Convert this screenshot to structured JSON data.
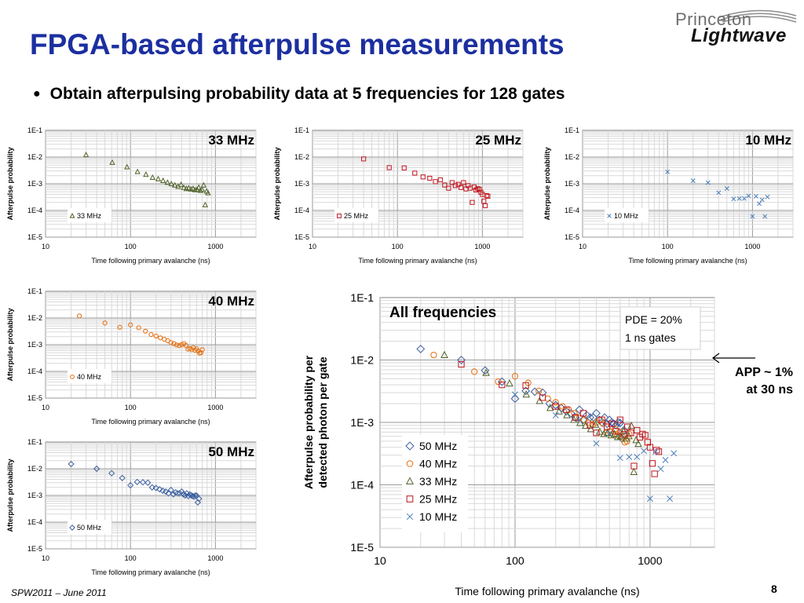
{
  "slide": {
    "title": "FPGA-based afterpulse measurements",
    "bullet": "Obtain afterpulsing probability data at 5 frequencies for 128 gates",
    "logo_top": "Princeton",
    "logo_bottom": "Lightwave",
    "app_note_line1": "APP ~ 1%",
    "app_note_line2": "at 30 ns",
    "footer": "SPW2011 – June 2011",
    "page_number": "8"
  },
  "chart_data": [
    {
      "id": "f33",
      "type": "scatter",
      "scale": "log-log",
      "title": "33 MHz",
      "xlabel": "Time following  primary avalanche (ns)",
      "ylabel": "Afterpulse probability",
      "xlim": [
        10,
        3000
      ],
      "ylim": [
        1e-05,
        0.1
      ],
      "xticks": [
        "10",
        "100",
        "1000"
      ],
      "yticks": [
        "1E-5",
        "1E-4",
        "1E-3",
        "1E-2",
        "1E-1"
      ],
      "grid": true,
      "legend_position": "bottom-left",
      "series": [
        {
          "name": "33 MHz",
          "marker": "triangle",
          "color": "#4f6228",
          "x": [
            30,
            61,
            91,
            121,
            152,
            182,
            212,
            242,
            273,
            303,
            333,
            364,
            394,
            424,
            455,
            485,
            515,
            545,
            576,
            606,
            636,
            667,
            697,
            727,
            758,
            788,
            818
          ],
          "y": [
            0.012,
            0.0062,
            0.0042,
            0.0028,
            0.0022,
            0.0017,
            0.0015,
            0.0013,
            0.0011,
            0.00098,
            0.00088,
            0.00078,
            0.00092,
            0.00071,
            0.00065,
            0.00068,
            0.00062,
            0.00065,
            0.00058,
            0.0006,
            0.00072,
            0.00055,
            0.0006,
            0.00088,
            0.00016,
            0.00052,
            0.00045
          ]
        }
      ]
    },
    {
      "id": "f25",
      "type": "scatter",
      "scale": "log-log",
      "title": "25 MHz",
      "xlabel": "Time following  primary avalanche (ns)",
      "ylabel": "Afterpulse probability",
      "xlim": [
        10,
        3000
      ],
      "ylim": [
        1e-05,
        0.1
      ],
      "xticks": [
        "10",
        "100",
        "1000"
      ],
      "yticks": [
        "1E-5",
        "1E-4",
        "1E-3",
        "1E-2",
        "1E-1"
      ],
      "grid": true,
      "legend_position": "bottom-left",
      "series": [
        {
          "name": "25 MHz",
          "marker": "square",
          "color": "#c0161e",
          "x": [
            40,
            80,
            120,
            160,
            200,
            240,
            280,
            320,
            360,
            400,
            440,
            480,
            520,
            560,
            600,
            640,
            680,
            720,
            760,
            800,
            840,
            880,
            920,
            960,
            1000,
            1040,
            1080,
            1120,
            1160
          ],
          "y": [
            0.0085,
            0.004,
            0.0039,
            0.0025,
            0.0018,
            0.0016,
            0.0012,
            0.0014,
            0.0009,
            0.00068,
            0.0011,
            0.00085,
            0.00095,
            0.00072,
            0.0011,
            0.00064,
            0.00085,
            0.00068,
            0.0002,
            0.00075,
            0.00058,
            0.00065,
            0.00062,
            0.00048,
            0.0004,
            0.00022,
            0.00015,
            0.00036,
            0.00034
          ]
        }
      ]
    },
    {
      "id": "f10",
      "type": "scatter",
      "scale": "log-log",
      "title": "10 MHz",
      "xlabel": "Time following  primary avalanche (ns)",
      "ylabel": "Afterpulse probability",
      "xlim": [
        10,
        3000
      ],
      "ylim": [
        1e-05,
        0.1
      ],
      "xticks": [
        "10",
        "100",
        "1000"
      ],
      "yticks": [
        "1E-5",
        "1E-4",
        "1E-3",
        "1E-2",
        "1E-1"
      ],
      "grid": true,
      "legend_position": "bottom-left",
      "series": [
        {
          "name": "10 MHz",
          "marker": "x",
          "color": "#4a7ebb",
          "x": [
            100,
            200,
            300,
            400,
            500,
            600,
            700,
            800,
            900,
            1000,
            1100,
            1200,
            1300,
            1400,
            1500
          ],
          "y": [
            0.0028,
            0.0013,
            0.0011,
            0.00046,
            0.00066,
            0.00027,
            0.00028,
            0.00028,
            0.00035,
            6e-05,
            0.00034,
            0.00018,
            0.00025,
            6e-05,
            0.00032
          ]
        }
      ]
    },
    {
      "id": "f40",
      "type": "scatter",
      "scale": "log-log",
      "title": "40 MHz",
      "xlabel": "Time following  primary avalanche (ns)",
      "ylabel": "Afterpulse probability",
      "xlim": [
        10,
        3000
      ],
      "ylim": [
        1e-05,
        0.1
      ],
      "xticks": [
        "10",
        "100",
        "1000"
      ],
      "yticks": [
        "1E-5",
        "1E-4",
        "1E-3",
        "1E-2",
        "1E-1"
      ],
      "grid": true,
      "legend_position": "bottom-left",
      "series": [
        {
          "name": "40 MHz",
          "marker": "circle",
          "color": "#e46c0a",
          "x": [
            25,
            50,
            75,
            100,
            125,
            150,
            175,
            200,
            225,
            250,
            275,
            300,
            325,
            350,
            375,
            400,
            425,
            450,
            475,
            500,
            525,
            550,
            575,
            600,
            625,
            650,
            675,
            700
          ],
          "y": [
            0.012,
            0.0065,
            0.0045,
            0.0055,
            0.0043,
            0.0032,
            0.0024,
            0.0021,
            0.0018,
            0.0016,
            0.0014,
            0.0012,
            0.0011,
            0.00098,
            0.00092,
            0.001,
            0.0011,
            0.00095,
            0.00068,
            0.00072,
            0.00065,
            0.00078,
            0.00062,
            0.0007,
            0.00058,
            0.00048,
            0.0005,
            0.00065
          ]
        }
      ]
    },
    {
      "id": "f50",
      "type": "scatter",
      "scale": "log-log",
      "title": "50 MHz",
      "xlabel": "Time following  primary avalanche (ns)",
      "ylabel": "Afterpulse probability",
      "xlim": [
        10,
        3000
      ],
      "ylim": [
        1e-05,
        0.1
      ],
      "xticks": [
        "10",
        "100",
        "1000"
      ],
      "yticks": [
        "1E-5",
        "1E-4",
        "1E-3",
        "1E-2",
        "1E-1"
      ],
      "grid": true,
      "legend_position": "bottom-left",
      "series": [
        {
          "name": "50 MHz",
          "marker": "diamond",
          "color": "#3a5f9e",
          "x": [
            20,
            40,
            60,
            80,
            100,
            120,
            140,
            160,
            180,
            200,
            220,
            240,
            260,
            280,
            300,
            320,
            340,
            360,
            380,
            400,
            420,
            440,
            460,
            480,
            500,
            520,
            540,
            560,
            580,
            600,
            620,
            640
          ],
          "y": [
            0.015,
            0.01,
            0.0068,
            0.0045,
            0.0024,
            0.0032,
            0.0031,
            0.003,
            0.002,
            0.0019,
            0.0017,
            0.0015,
            0.0014,
            0.0012,
            0.0016,
            0.0011,
            0.0013,
            0.0012,
            0.0012,
            0.0014,
            0.0011,
            0.001,
            0.0012,
            0.00095,
            0.0011,
            0.001,
            0.00095,
            0.0009,
            0.001,
            0.00098,
            0.00055,
            0.00075
          ]
        }
      ]
    },
    {
      "id": "all",
      "type": "scatter",
      "scale": "log-log",
      "title": "All frequencies",
      "xlabel": "Time following  primary avalanche (ns)",
      "ylabel": "Afterpulse probability per detected photon  per gate",
      "xlim": [
        10,
        3000
      ],
      "ylim": [
        1e-05,
        0.1
      ],
      "xticks": [
        "10",
        "100",
        "1000"
      ],
      "yticks": [
        "1E-5",
        "1E-4",
        "1E-3",
        "1E-2",
        "1E-1"
      ],
      "grid": true,
      "legend_position": "bottom-left",
      "annotation_line1": "PDE = 20%",
      "annotation_line2": "1 ns gates",
      "series": [
        {
          "name": "50 MHz",
          "marker": "diamond",
          "color": "#3a5f9e",
          "ref": "f50"
        },
        {
          "name": "40 MHz",
          "marker": "circle",
          "color": "#e46c0a",
          "ref": "f40"
        },
        {
          "name": "33 MHz",
          "marker": "triangle",
          "color": "#4f6228",
          "ref": "f33"
        },
        {
          "name": "25 MHz",
          "marker": "square",
          "color": "#c0161e",
          "ref": "f25"
        },
        {
          "name": "10 MHz",
          "marker": "x",
          "color": "#4a7ebb",
          "ref": "f10"
        }
      ]
    }
  ]
}
